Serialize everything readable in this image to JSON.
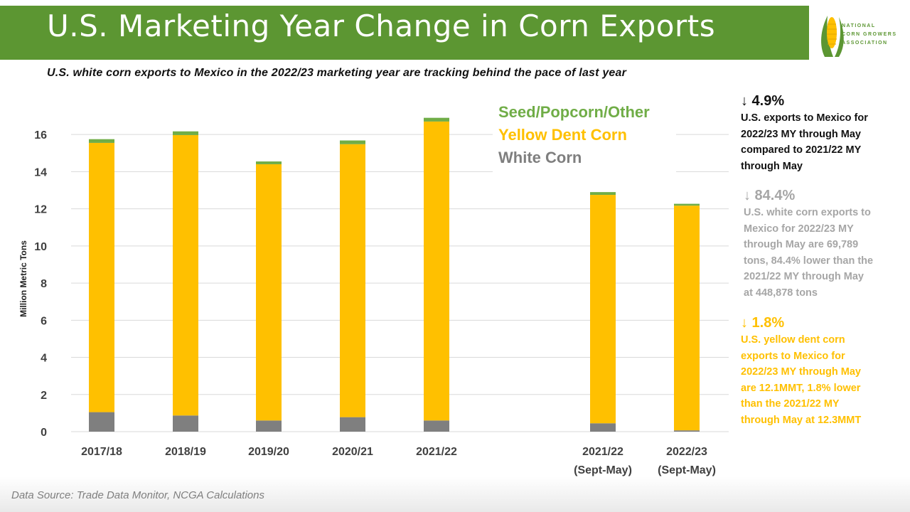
{
  "header": {
    "title": "U.S. Marketing Year Change in Corn Exports"
  },
  "logo": {
    "text": "NATIONAL CORN GROWERS ASSOCIATION",
    "icon": "corn-logo-icon"
  },
  "subtitle": "U.S. white corn exports to Mexico in the 2022/23 marketing year are tracking behind the pace of last year",
  "colors": {
    "header": "#5c9632",
    "white_corn": "#7f7f7f",
    "yellow_dent": "#ffc000",
    "seed_other": "#70ad47",
    "stat_black": "#111111",
    "stat_gray": "#a6a6a6"
  },
  "chart_data": {
    "type": "bar",
    "stacked": true,
    "title": "",
    "xlabel": "",
    "ylabel": "Million Metric Tons",
    "ylim": [
      0,
      17.5
    ],
    "yticks": [
      "0",
      "2",
      "4",
      "6",
      "8",
      "10",
      "12",
      "14",
      "16"
    ],
    "categories": [
      [
        "2017/18"
      ],
      [
        "2018/19"
      ],
      [
        "2019/20"
      ],
      [
        "2020/21"
      ],
      [
        "2021/22"
      ],
      [
        "2021/22",
        "(Sept-May)"
      ],
      [
        "2022/23",
        "(Sept-May)"
      ]
    ],
    "series": [
      {
        "name": "White Corn",
        "color": "#7f7f7f",
        "values": [
          1.05,
          0.87,
          0.6,
          0.78,
          0.6,
          0.45,
          0.07
        ]
      },
      {
        "name": "Yellow Dent Corn",
        "color": "#ffc000",
        "values": [
          14.5,
          15.1,
          13.8,
          14.7,
          16.1,
          12.3,
          12.1
        ]
      },
      {
        "name": "Seed/Popcorn/Other",
        "color": "#70ad47",
        "values": [
          0.2,
          0.2,
          0.15,
          0.2,
          0.2,
          0.15,
          0.1
        ]
      }
    ],
    "legend": [
      "Seed/Popcorn/Other",
      "Yellow Dent Corn",
      "White Corn"
    ],
    "legend_position": "top-right"
  },
  "stats": [
    {
      "pct": "↓ 4.9%",
      "desc": [
        "U.S. exports to Mexico for",
        "2022/23 MY through May",
        "compared to 2021/22 MY",
        "through May"
      ]
    },
    {
      "pct": "↓ 84.4%",
      "desc": [
        "U.S. white corn exports to",
        "Mexico for 2022/23 MY",
        "through May are 69,789",
        "tons, 84.4% lower than the",
        "2021/22 MY through May",
        "at 448,878 tons"
      ]
    },
    {
      "pct": "↓ 1.8%",
      "desc": [
        "U.S. yellow dent corn",
        "exports to Mexico for",
        "2022/23 MY through May",
        "are 12.1MMT, 1.8% lower",
        "than the 2021/22 MY",
        "through May at 12.3MMT"
      ]
    }
  ],
  "source": "Data Source: Trade Data Monitor, NCGA Calculations"
}
